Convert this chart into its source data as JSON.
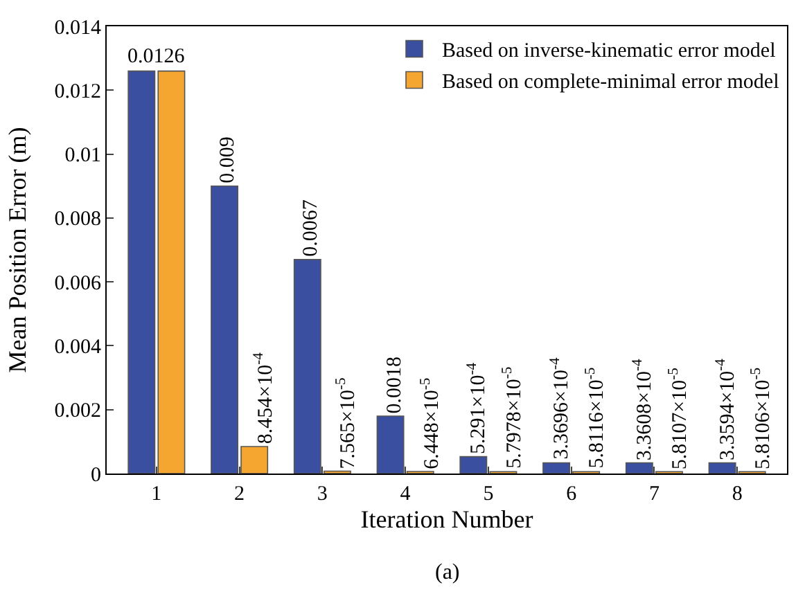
{
  "chart_data": {
    "type": "bar",
    "xlabel": "Iteration Number",
    "ylabel": "Mean Position Error (m)",
    "categories": [
      "1",
      "2",
      "3",
      "4",
      "5",
      "6",
      "7",
      "8"
    ],
    "series": [
      {
        "name": "Based on inverse-kinematic error model",
        "color": "#3a4fa0",
        "values": [
          0.0126,
          0.009,
          0.0067,
          0.0018,
          0.0005291,
          0.00033696,
          0.00033608,
          0.00033594
        ],
        "value_labels": [
          "0.0126",
          "0.009",
          "0.0067",
          "0.0018",
          "5.291×10$^{-4}$",
          "3.3696×10$^{-4}$",
          "3.3608×10$^{-4}$",
          "3.3594×10$^{-4}$"
        ]
      },
      {
        "name": "Based on complete-minimal error model",
        "color": "#f5a630",
        "values": [
          0.0126,
          0.0008454,
          7.565e-05,
          6.448e-05,
          5.7978e-05,
          5.8116e-05,
          5.8107e-05,
          5.8106e-05
        ],
        "value_labels": [
          null,
          "8.454×10$^{-4}$",
          "7.565×10$^{-5}$",
          "6.448×10$^{-5}$",
          "5.7978×10$^{-5}$",
          "5.8116×10$^{-5}$",
          "5.8107×10$^{-5}$",
          "5.8106×10$^{-5}$"
        ]
      }
    ],
    "ylim": [
      0,
      0.014
    ],
    "yticks": [
      0,
      0.002,
      0.004,
      0.006,
      0.008,
      0.01,
      0.012,
      0.014
    ],
    "legend": "top right",
    "annotations": [
      "(a)"
    ]
  }
}
